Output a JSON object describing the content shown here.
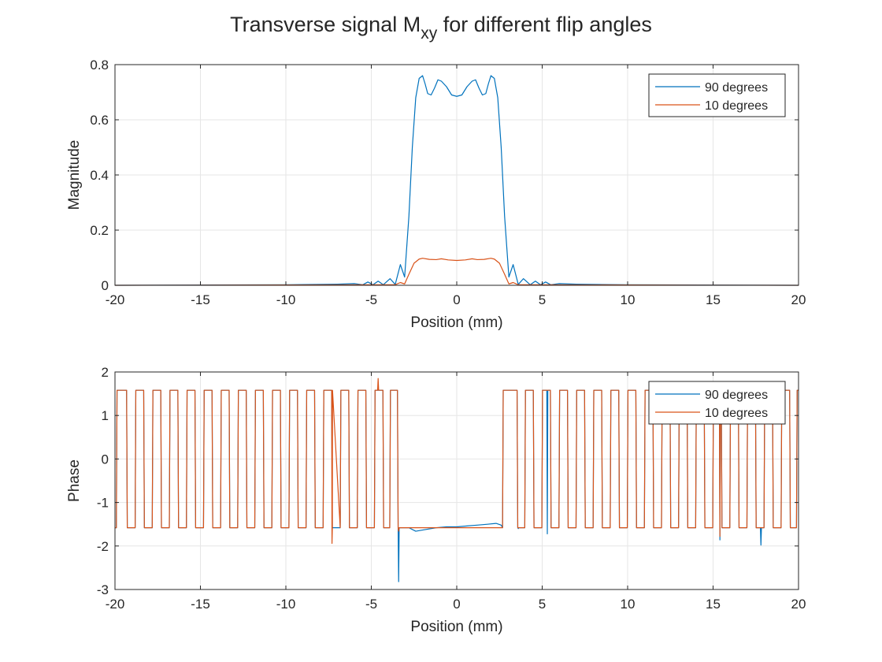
{
  "figure": {
    "title_main": "Transverse signal M",
    "title_sub": "xy",
    "title_rest": " for different flip angles"
  },
  "colors": {
    "series_90": "#0072BD",
    "series_10": "#D95319",
    "grid": "#E6E6E6",
    "axis": "#262626"
  },
  "chart_data": [
    {
      "type": "line",
      "panel": "top",
      "xlabel": "Position (mm)",
      "ylabel": "Magnitude",
      "xlim": [
        -20,
        20
      ],
      "ylim": [
        0,
        0.8
      ],
      "xticks": [
        -20,
        -15,
        -10,
        -5,
        0,
        5,
        10,
        15,
        20
      ],
      "yticks": [
        0,
        0.2,
        0.4,
        0.6,
        0.8
      ],
      "ytick_labels": [
        "0",
        "0.2",
        "0.4",
        "0.6",
        "0.8"
      ],
      "grid": true,
      "legend_position": "top-right",
      "series": [
        {
          "name": "90 degrees",
          "color": "#0072BD",
          "points": [
            [
              -20,
              0
            ],
            [
              -10,
              0.002
            ],
            [
              -7,
              0.004
            ],
            [
              -6,
              0.006
            ],
            [
              -5.5,
              0.002
            ],
            [
              -5.2,
              0.012
            ],
            [
              -4.9,
              0.002
            ],
            [
              -4.6,
              0.015
            ],
            [
              -4.3,
              0.002
            ],
            [
              -3.9,
              0.024
            ],
            [
              -3.6,
              0.003
            ],
            [
              -3.3,
              0.075
            ],
            [
              -3.05,
              0.03
            ],
            [
              -2.8,
              0.25
            ],
            [
              -2.6,
              0.5
            ],
            [
              -2.4,
              0.68
            ],
            [
              -2.2,
              0.75
            ],
            [
              -2.0,
              0.76
            ],
            [
              -1.85,
              0.73
            ],
            [
              -1.7,
              0.695
            ],
            [
              -1.5,
              0.69
            ],
            [
              -1.3,
              0.715
            ],
            [
              -1.1,
              0.745
            ],
            [
              -0.9,
              0.74
            ],
            [
              -0.6,
              0.72
            ],
            [
              -0.3,
              0.69
            ],
            [
              0,
              0.685
            ],
            [
              0.3,
              0.69
            ],
            [
              0.6,
              0.72
            ],
            [
              0.9,
              0.74
            ],
            [
              1.1,
              0.745
            ],
            [
              1.3,
              0.715
            ],
            [
              1.5,
              0.69
            ],
            [
              1.7,
              0.695
            ],
            [
              1.85,
              0.73
            ],
            [
              2.0,
              0.76
            ],
            [
              2.2,
              0.75
            ],
            [
              2.4,
              0.68
            ],
            [
              2.6,
              0.5
            ],
            [
              2.8,
              0.25
            ],
            [
              3.05,
              0.03
            ],
            [
              3.3,
              0.075
            ],
            [
              3.6,
              0.003
            ],
            [
              3.9,
              0.024
            ],
            [
              4.3,
              0.002
            ],
            [
              4.6,
              0.015
            ],
            [
              4.9,
              0.002
            ],
            [
              5.2,
              0.012
            ],
            [
              5.5,
              0.002
            ],
            [
              6,
              0.006
            ],
            [
              7,
              0.004
            ],
            [
              10,
              0.002
            ],
            [
              20,
              0
            ]
          ]
        },
        {
          "name": "10 degrees",
          "color": "#D95319",
          "points": [
            [
              -20,
              0
            ],
            [
              -10,
              0.001
            ],
            [
              -5,
              0.002
            ],
            [
              -3.6,
              0.002
            ],
            [
              -3.3,
              0.01
            ],
            [
              -3.05,
              0.005
            ],
            [
              -2.8,
              0.04
            ],
            [
              -2.5,
              0.08
            ],
            [
              -2.2,
              0.095
            ],
            [
              -2.0,
              0.098
            ],
            [
              -1.6,
              0.094
            ],
            [
              -1.2,
              0.093
            ],
            [
              -0.9,
              0.096
            ],
            [
              -0.5,
              0.092
            ],
            [
              0,
              0.09
            ],
            [
              0.5,
              0.092
            ],
            [
              0.9,
              0.096
            ],
            [
              1.2,
              0.093
            ],
            [
              1.6,
              0.094
            ],
            [
              2.0,
              0.098
            ],
            [
              2.2,
              0.095
            ],
            [
              2.5,
              0.08
            ],
            [
              2.8,
              0.04
            ],
            [
              3.05,
              0.005
            ],
            [
              3.3,
              0.01
            ],
            [
              3.6,
              0.002
            ],
            [
              5,
              0.002
            ],
            [
              10,
              0.001
            ],
            [
              20,
              0
            ]
          ]
        }
      ]
    },
    {
      "type": "line",
      "panel": "bottom",
      "xlabel": "Position (mm)",
      "ylabel": "Phase",
      "xlim": [
        -20,
        20
      ],
      "ylim": [
        -3,
        2
      ],
      "xticks": [
        -20,
        -15,
        -10,
        -5,
        0,
        5,
        10,
        15,
        20
      ],
      "yticks": [
        -3,
        -2,
        -1,
        0,
        1,
        2
      ],
      "ytick_labels": [
        "-3",
        "-2",
        "-1",
        "0",
        "1",
        "2"
      ],
      "grid": true,
      "legend_position": "top-right",
      "phase_high": 1.58,
      "phase_low": -1.58,
      "left_jumps": [
        -19.9,
        -19.3,
        -18.8,
        -18.3,
        -17.8,
        -17.3,
        -16.8,
        -16.3,
        -15.8,
        -15.3,
        -14.8,
        -14.3,
        -13.8,
        -13.3,
        -12.8,
        -12.3,
        -11.8,
        -11.3,
        -10.8,
        -10.3,
        -9.8,
        -9.3,
        -8.8,
        -8.3,
        -7.8,
        -7.3,
        -6.8,
        -6.3,
        -5.8,
        -5.3,
        -4.8,
        -4.3,
        -3.9,
        -3.45
      ],
      "right_jumps": [
        2.7,
        3.55,
        4.0,
        4.5,
        5.0,
        5.5,
        6.0,
        6.5,
        7.0,
        7.5,
        8.0,
        8.5,
        9.0,
        9.5,
        10.0,
        10.5,
        11.0,
        11.5,
        12.0,
        12.5,
        13.0,
        13.5,
        14.0,
        14.5,
        15.0,
        15.5,
        16.0,
        16.5,
        17.0,
        17.5,
        18.0,
        18.5,
        19.0,
        19.5,
        19.9
      ],
      "series": [
        {
          "name": "90 degrees",
          "color": "#0072BD",
          "spikes": [
            [
              -3.4,
              -2.82
            ],
            [
              3.6,
              -1.6
            ],
            [
              5.3,
              -1.72
            ],
            [
              15.4,
              -1.86
            ],
            [
              17.8,
              -1.98
            ]
          ],
          "center": [
            [
              -2.8,
              -1.58
            ],
            [
              -2.4,
              -1.66
            ],
            [
              -1.8,
              -1.62
            ],
            [
              -1.2,
              -1.58
            ],
            [
              -0.6,
              -1.56
            ],
            [
              0,
              -1.56
            ],
            [
              0.6,
              -1.54
            ],
            [
              1.2,
              -1.52
            ],
            [
              1.8,
              -1.5
            ],
            [
              2.3,
              -1.48
            ],
            [
              2.6,
              -1.52
            ]
          ]
        },
        {
          "name": "10 degrees",
          "color": "#D95319",
          "spikes": [
            [
              -7.3,
              -1.94
            ],
            [
              -4.6,
              1.85
            ],
            [
              -3.4,
              -1.66
            ],
            [
              15.4,
              -1.78
            ]
          ],
          "center": [
            [
              -2.8,
              -1.58
            ],
            [
              2.6,
              -1.58
            ]
          ]
        }
      ]
    }
  ]
}
